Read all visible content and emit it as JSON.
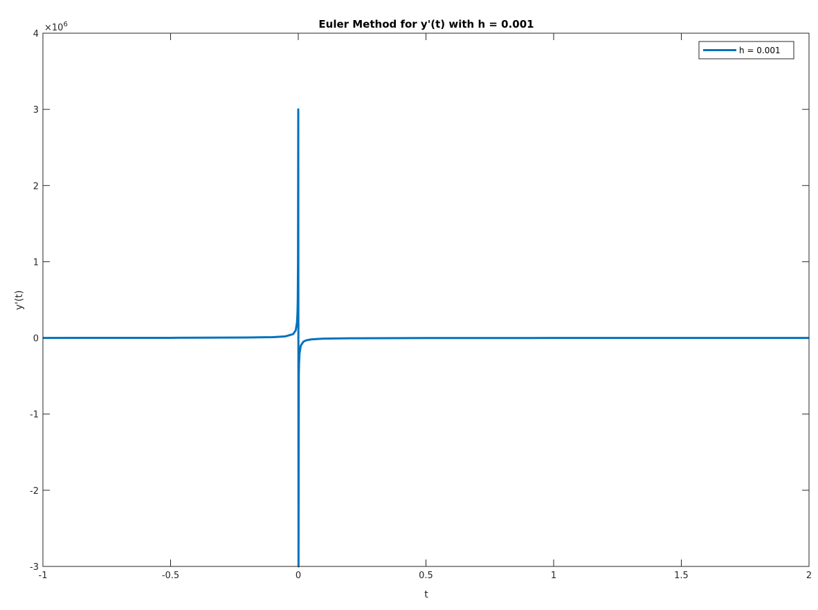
{
  "chart_data": {
    "type": "line",
    "title": "Euler Method for y'(t) with h = 0.001",
    "xlabel": "t",
    "ylabel": "y'(t)",
    "exponent_label": {
      "base": "×10",
      "power": "6"
    },
    "xlim": [
      -1,
      2
    ],
    "ylim": [
      -3000000,
      4000000
    ],
    "x_ticks": [
      -1,
      -0.5,
      0,
      0.5,
      1,
      1.5,
      2
    ],
    "x_tick_labels": [
      "-1",
      "-0.5",
      "0",
      "0.5",
      "1",
      "1.5",
      "2"
    ],
    "y_ticks": [
      -3000000,
      -2000000,
      -1000000,
      0,
      1000000,
      2000000,
      3000000,
      4000000
    ],
    "y_tick_labels": [
      "-3",
      "-2",
      "-1",
      "0",
      "1",
      "2",
      "3",
      "4"
    ],
    "grid": false,
    "box": true,
    "legend_position": "top-right",
    "series": [
      {
        "name": "h = 0.001",
        "color": "#0072BD",
        "points": [
          [
            -1,
            0
          ],
          [
            -0.5,
            1000
          ],
          [
            -0.2,
            5000
          ],
          [
            -0.1,
            10000
          ],
          [
            -0.05,
            20000
          ],
          [
            -0.02,
            50000
          ],
          [
            -0.01,
            100000
          ],
          [
            -0.005,
            200000
          ],
          [
            -0.003,
            333000
          ],
          [
            -0.002,
            500000
          ],
          [
            -0.001,
            1000000
          ],
          [
            0,
            3000000
          ],
          [
            0.001,
            -3000000
          ],
          [
            0.002,
            -500000
          ],
          [
            0.003,
            -333000
          ],
          [
            0.005,
            -200000
          ],
          [
            0.01,
            -100000
          ],
          [
            0.02,
            -50000
          ],
          [
            0.03,
            -33000
          ],
          [
            0.05,
            -20000
          ],
          [
            0.08,
            -12500
          ],
          [
            0.1,
            -10000
          ],
          [
            0.2,
            -5000
          ],
          [
            0.5,
            -2000
          ],
          [
            1,
            -1000
          ],
          [
            1.5,
            -667
          ],
          [
            2,
            -500
          ]
        ]
      }
    ]
  }
}
